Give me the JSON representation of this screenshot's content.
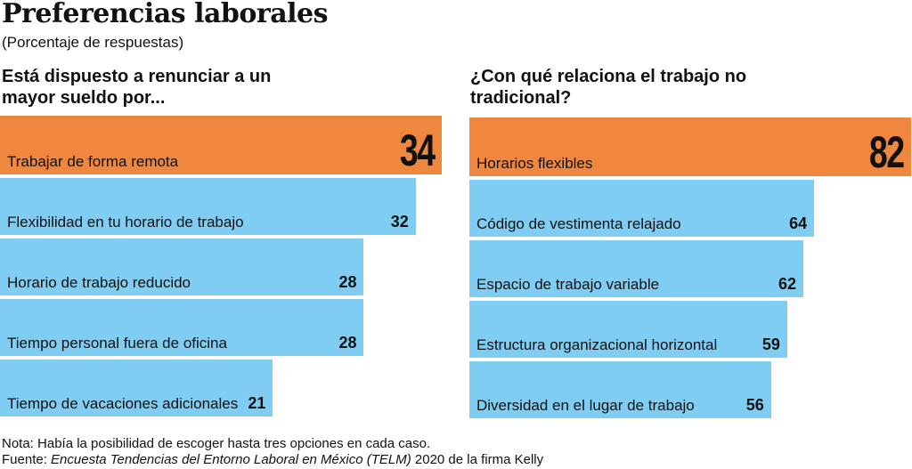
{
  "title": "Preferencias laborales",
  "subtitle": "(Porcentaje de respuestas)",
  "chart_data": [
    {
      "type": "bar",
      "orientation": "horizontal",
      "title": "Está dispuesto a renunciar a un mayor sueldo por...",
      "categories": [
        "Trabajar de forma remota",
        "Flexibilidad en tu horario de trabajo",
        "Horario de trabajo reducido",
        "Tiempo personal fuera de oficina",
        "Tiempo de vacaciones adicionales"
      ],
      "values": [
        34,
        32,
        28,
        28,
        21
      ],
      "labels": [
        "34",
        "32",
        "28",
        "28",
        "21"
      ],
      "highlight_color": "#f0873f",
      "color": "#7fcdf2"
    },
    {
      "type": "bar",
      "orientation": "horizontal",
      "title": "¿Con qué relaciona el trabajo no tradicional?",
      "categories": [
        "Horarios flexibles",
        "Código de vestimenta relajado",
        "Espacio de trabajo variable",
        "Estructura organizacional horizontal",
        "Diversidad en el lugar de trabajo"
      ],
      "values": [
        82,
        64,
        62,
        59,
        56
      ],
      "labels": [
        "82",
        "64",
        "62",
        "59",
        "56"
      ],
      "highlight_color": "#f0873f",
      "color": "#7fcdf2"
    }
  ],
  "note": "Nota: Había la posibilidad de escoger hasta  tres opciones en cada caso.",
  "source_prefix": "Fuente: ",
  "source_italic": "Encuesta Tendencias del Entorno Laboral en México (TELM)",
  "source_suffix": " 2020 de la firma Kelly"
}
